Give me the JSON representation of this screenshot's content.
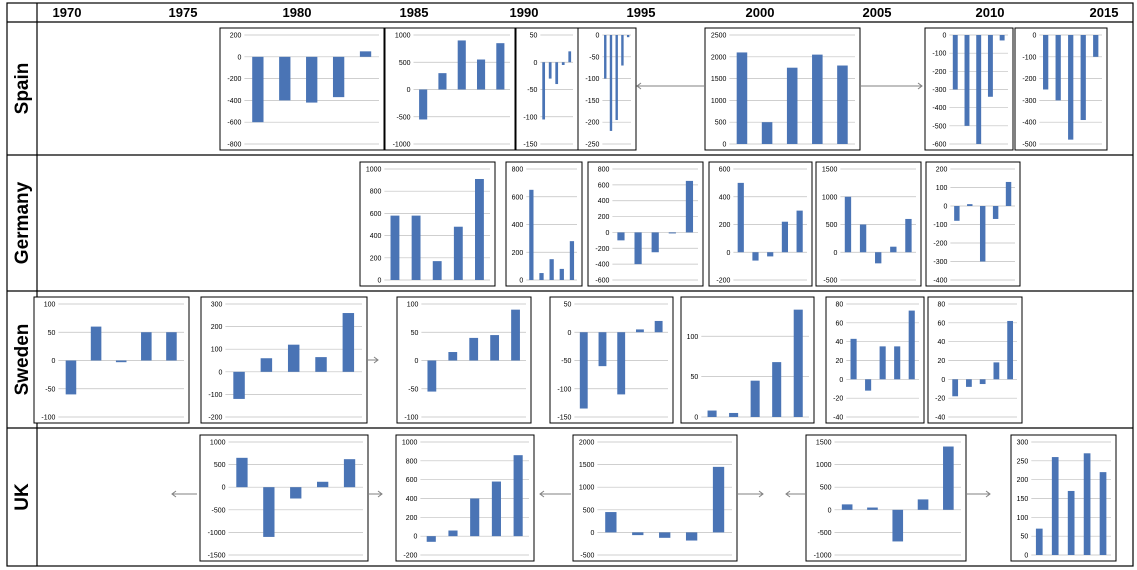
{
  "years": [
    "1970",
    "1975",
    "1980",
    "1985",
    "1990",
    "1995",
    "2000",
    "2005",
    "2010",
    "2015"
  ],
  "countries": [
    "Spain",
    "Germany",
    "Sweden",
    "UK"
  ],
  "colors": {
    "bar": "#4a74b5",
    "grid": "#bfbfbf",
    "border": "#000000",
    "arrow": "#808080"
  },
  "chart_data": [
    {
      "type": "bar",
      "row": "Spain",
      "index": 0,
      "ticks": [
        "200",
        "0",
        "-200",
        "-400",
        "-600",
        "-800"
      ],
      "ylim": [
        -800,
        200
      ],
      "values": [
        -600,
        -400,
        -420,
        -370,
        50
      ]
    },
    {
      "type": "bar",
      "row": "Spain",
      "index": 1,
      "ticks": [
        "1000",
        "500",
        "0",
        "-500",
        "-1000"
      ],
      "ylim": [
        -1000,
        1000
      ],
      "values": [
        -550,
        300,
        900,
        550,
        850
      ]
    },
    {
      "type": "bar",
      "row": "Spain",
      "index": 2,
      "ticks": [
        "50",
        "0",
        "-50",
        "-100",
        "-150"
      ],
      "ylim": [
        -150,
        50
      ],
      "values": [
        -105,
        -30,
        -40,
        -5,
        20
      ]
    },
    {
      "type": "bar",
      "row": "Spain",
      "index": 3,
      "ticks": [
        "0",
        "-50",
        "-100",
        "-150",
        "-200",
        "-250"
      ],
      "ylim": [
        -250,
        0
      ],
      "values": [
        -100,
        -220,
        -195,
        -70,
        -5
      ]
    },
    {
      "type": "bar",
      "row": "Spain",
      "index": 4,
      "ticks": [
        "2500",
        "2000",
        "1500",
        "1000",
        "500",
        "0"
      ],
      "ylim": [
        0,
        2500
      ],
      "values": [
        2100,
        500,
        1750,
        2050,
        1800
      ]
    },
    {
      "type": "bar",
      "row": "Spain",
      "index": 5,
      "ticks": [
        "0",
        "-100",
        "-200",
        "-300",
        "-400",
        "-500",
        "-600"
      ],
      "ylim": [
        -600,
        0
      ],
      "values": [
        -300,
        -500,
        -600,
        -340,
        -30
      ]
    },
    {
      "type": "bar",
      "row": "Spain",
      "index": 6,
      "ticks": [
        "0",
        "-100",
        "-200",
        "-300",
        "-400",
        "-500"
      ],
      "ylim": [
        -500,
        0
      ],
      "values": [
        -250,
        -300,
        -480,
        -390,
        -100
      ]
    },
    {
      "type": "bar",
      "row": "Germany",
      "index": 0,
      "ticks": [
        "1000",
        "800",
        "600",
        "400",
        "200",
        "0"
      ],
      "ylim": [
        0,
        1000
      ],
      "values": [
        580,
        580,
        170,
        480,
        910
      ]
    },
    {
      "type": "bar",
      "row": "Germany",
      "index": 1,
      "ticks": [
        "800",
        "600",
        "400",
        "200",
        "0"
      ],
      "ylim": [
        0,
        800
      ],
      "values": [
        650,
        50,
        150,
        80,
        280
      ]
    },
    {
      "type": "bar",
      "row": "Germany",
      "index": 2,
      "ticks": [
        "800",
        "600",
        "400",
        "200",
        "0",
        "-200",
        "-400",
        "-600"
      ],
      "ylim": [
        -600,
        800
      ],
      "values": [
        -100,
        -400,
        -250,
        0,
        650
      ]
    },
    {
      "type": "bar",
      "row": "Germany",
      "index": 3,
      "ticks": [
        "600",
        "400",
        "200",
        "0",
        "-200"
      ],
      "ylim": [
        -200,
        600
      ],
      "values": [
        500,
        -60,
        -30,
        220,
        300
      ]
    },
    {
      "type": "bar",
      "row": "Germany",
      "index": 4,
      "ticks": [
        "1500",
        "1000",
        "500",
        "0",
        "-500"
      ],
      "ylim": [
        -500,
        1500
      ],
      "values": [
        1000,
        500,
        -200,
        100,
        600
      ]
    },
    {
      "type": "bar",
      "row": "Germany",
      "index": 5,
      "ticks": [
        "200",
        "100",
        "0",
        "-100",
        "-200",
        "-300",
        "-400"
      ],
      "ylim": [
        -400,
        200
      ],
      "values": [
        -80,
        10,
        -300,
        -70,
        130
      ]
    },
    {
      "type": "bar",
      "row": "Sweden",
      "index": 0,
      "ticks": [
        "100",
        "50",
        "0",
        "-50",
        "-100"
      ],
      "ylim": [
        -100,
        100
      ],
      "values": [
        -60,
        60,
        -3,
        50,
        50
      ]
    },
    {
      "type": "bar",
      "row": "Sweden",
      "index": 1,
      "ticks": [
        "300",
        "200",
        "100",
        "0",
        "-100",
        "-200"
      ],
      "ylim": [
        -200,
        300
      ],
      "values": [
        -120,
        60,
        120,
        65,
        260
      ]
    },
    {
      "type": "bar",
      "row": "Sweden",
      "index": 2,
      "ticks": [
        "100",
        "50",
        "0",
        "-50",
        "-100"
      ],
      "ylim": [
        -100,
        100
      ],
      "values": [
        -55,
        15,
        40,
        45,
        90
      ]
    },
    {
      "type": "bar",
      "row": "Sweden",
      "index": 3,
      "ticks": [
        "50",
        "0",
        "-50",
        "-100",
        "-150"
      ],
      "ylim": [
        -150,
        50
      ],
      "values": [
        -135,
        -60,
        -110,
        5,
        20
      ]
    },
    {
      "type": "bar",
      "row": "Sweden",
      "index": 4,
      "ticks": [
        "100",
        "50",
        "0"
      ],
      "ylim": [
        0,
        140
      ],
      "values": [
        8,
        5,
        45,
        68,
        133
      ]
    },
    {
      "type": "bar",
      "row": "Sweden",
      "index": 5,
      "ticks": [
        "80",
        "60",
        "40",
        "20",
        "0",
        "-20",
        "-40"
      ],
      "ylim": [
        -40,
        80
      ],
      "values": [
        43,
        -12,
        35,
        35,
        73
      ]
    },
    {
      "type": "bar",
      "row": "Sweden",
      "index": 6,
      "ticks": [
        "80",
        "60",
        "40",
        "20",
        "0",
        "-20",
        "-40"
      ],
      "ylim": [
        -40,
        80
      ],
      "values": [
        -18,
        -8,
        -5,
        18,
        62
      ]
    },
    {
      "type": "bar",
      "row": "UK",
      "index": 0,
      "ticks": [
        "1000",
        "500",
        "0",
        "-500",
        "-1000",
        "-1500"
      ],
      "ylim": [
        -1500,
        1000
      ],
      "values": [
        650,
        -1100,
        -250,
        120,
        620
      ]
    },
    {
      "type": "bar",
      "row": "UK",
      "index": 1,
      "ticks": [
        "1000",
        "800",
        "600",
        "400",
        "200",
        "0",
        "-200"
      ],
      "ylim": [
        -200,
        1000
      ],
      "values": [
        -60,
        60,
        400,
        580,
        860
      ]
    },
    {
      "type": "bar",
      "row": "UK",
      "index": 2,
      "ticks": [
        "2000",
        "1500",
        "1000",
        "500",
        "0",
        "-500"
      ],
      "ylim": [
        -500,
        2000
      ],
      "values": [
        450,
        -60,
        -120,
        -180,
        1450
      ]
    },
    {
      "type": "bar",
      "row": "UK",
      "index": 3,
      "ticks": [
        "1500",
        "1000",
        "500",
        "0",
        "-500",
        "-1000"
      ],
      "ylim": [
        -1000,
        1500
      ],
      "values": [
        120,
        50,
        -700,
        230,
        1400
      ]
    },
    {
      "type": "bar",
      "row": "UK",
      "index": 4,
      "ticks": [
        "300",
        "250",
        "200",
        "150",
        "100",
        "50",
        "0"
      ],
      "ylim": [
        0,
        300
      ],
      "values": [
        70,
        260,
        170,
        270,
        220
      ]
    }
  ]
}
